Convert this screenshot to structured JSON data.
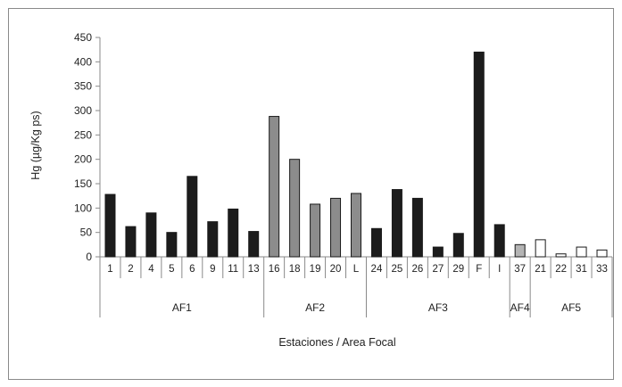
{
  "chart_data": {
    "type": "bar",
    "title": "",
    "xlabel": "Estaciones / Area Focal",
    "ylabel": "Hg (µg/Kg ps)",
    "ylim": [
      0,
      450
    ],
    "yticks": [
      0,
      50,
      100,
      150,
      200,
      250,
      300,
      350,
      400,
      450
    ],
    "grid": false,
    "legend": "none",
    "categories": [
      "1",
      "2",
      "4",
      "5",
      "6",
      "9",
      "11",
      "13",
      "16",
      "18",
      "19",
      "20",
      "L",
      "24",
      "25",
      "26",
      "27",
      "29",
      "F",
      "I",
      "37",
      "21",
      "22",
      "31",
      "33"
    ],
    "values": [
      128,
      62,
      90,
      50,
      165,
      72,
      98,
      52,
      288,
      200,
      108,
      120,
      130,
      58,
      138,
      120,
      20,
      48,
      420,
      66,
      25,
      35,
      6,
      20,
      14
    ],
    "groups": [
      {
        "label": "AF1",
        "count": 8,
        "color": "#1c1c1c"
      },
      {
        "label": "AF2",
        "count": 5,
        "color": "#8c8c8c"
      },
      {
        "label": "AF3",
        "count": 7,
        "color": "#1c1c1c"
      },
      {
        "label": "AF4",
        "count": 1,
        "color": "#b4b4b4"
      },
      {
        "label": "AF5",
        "count": 4,
        "color": "#ffffff"
      }
    ]
  }
}
